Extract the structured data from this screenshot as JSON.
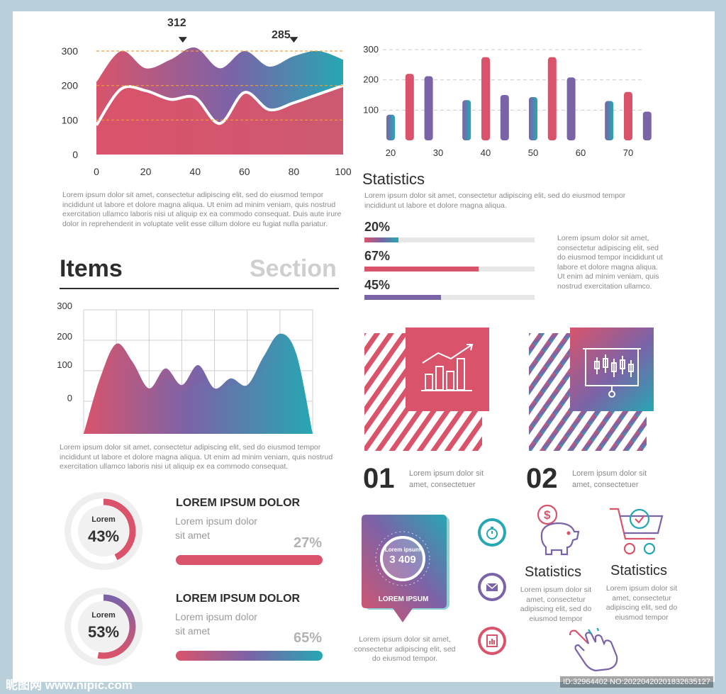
{
  "colors": {
    "red": "#d9546b",
    "purple": "#7b63a8",
    "teal": "#26a7b3",
    "grey": "#e7e7e7"
  },
  "chart_data": [
    {
      "type": "area",
      "x": [
        0,
        10,
        20,
        30,
        40,
        50,
        60,
        70,
        80,
        90,
        100
      ],
      "series": [
        {
          "values": [
            210,
            300,
            250,
            275,
            310,
            250,
            300,
            255,
            285,
            300,
            275
          ]
        },
        {
          "values": [
            85,
            190,
            185,
            160,
            165,
            90,
            180,
            130,
            150,
            175,
            200
          ]
        }
      ],
      "xticks": [
        "0",
        "20",
        "40",
        "60",
        "80",
        "100"
      ],
      "yticks": [
        "0",
        "100",
        "200",
        "300"
      ],
      "ylim": [
        0,
        320
      ],
      "annotations": [
        {
          "x": 35,
          "label": "312"
        },
        {
          "x": 80,
          "label": "285"
        }
      ]
    },
    {
      "type": "bar",
      "x": [
        20,
        24,
        28,
        36,
        40,
        44,
        50,
        54,
        58,
        66,
        70,
        74
      ],
      "values": [
        85,
        220,
        212,
        133,
        275,
        150,
        143,
        275,
        208,
        130,
        160,
        95
      ],
      "xticks": [
        "20",
        "30",
        "40",
        "50",
        "60",
        "70"
      ],
      "yticks": [
        "100",
        "200",
        "300"
      ],
      "ylim": [
        0,
        320
      ]
    },
    {
      "type": "area",
      "x": [
        0,
        1,
        2,
        3,
        4,
        5,
        6,
        7,
        8,
        9,
        10,
        11,
        12,
        13,
        14
      ],
      "series": [
        {
          "values": [
            -40,
            60,
            175,
            110,
            30,
            90,
            40,
            100,
            30,
            60,
            40,
            130,
            210,
            140,
            -40
          ]
        },
        {
          "values": [
            -40,
            40,
            120,
            60,
            10,
            60,
            20,
            50,
            20,
            40,
            30,
            80,
            120,
            80,
            -40
          ]
        }
      ],
      "yticks": [
        "0",
        "100",
        "200",
        "300"
      ],
      "ylim": [
        -40,
        300
      ]
    }
  ],
  "chart1": {
    "ann1": "312",
    "ann2": "285"
  },
  "para1": "Lorem ipsum dolor sit amet, consectetur adipiscing elit, sed do eiusmod tempor incididunt ut labore et dolore magna aliqua. Ut enim ad minim veniam, quis nostrud exercitation ullamco laboris nisi ut aliquip ex ea commodo consequat. Duis aute irure dolor in reprehenderit in voluptate velit esse cillum dolore eu fugiat nulla pariatur.",
  "items": "Items",
  "section": "Section",
  "para2": "Lorem ipsum dolor sit amet, consectetur adipiscing elit, sed do eiusmod tempor incididunt ut labore et dolore magna aliqua. Ut enim ad minim veniam, quis nostrud exercitation ullamco laboris nisi ut aliquip ex ea commodo consequat.",
  "statistics": {
    "title": "Statistics",
    "para": "Lorem ipsum dolor sit amet, consectetur adipiscing elit, sed do eiusmod tempor incididunt ut labore et dolore magna aliqua.",
    "bars": [
      {
        "label": "20%",
        "value": 0.2
      },
      {
        "label": "67%",
        "value": 0.67
      },
      {
        "label": "45%",
        "value": 0.45
      }
    ],
    "side": "Lorem ipsum dolor sit amet, consectetur adipiscing elit, sed do eiusmod tempor incididunt ut labore et dolore magna aliqua. Ut enim ad minim veniam, quis nostrud exercitation ullamco."
  },
  "tiles": [
    {
      "num": "01",
      "text": "Lorem ipsum dolor sit amet, consectetuer",
      "icon": "growth-chart-icon"
    },
    {
      "num": "02",
      "text": "Lorem ipsum dolor sit amet, consectetuer",
      "icon": "presentation-board-icon"
    }
  ],
  "rings": [
    {
      "label": "Lorem",
      "value": "43%",
      "pct": 0.43
    },
    {
      "label": "Lorem",
      "value": "53%",
      "pct": 0.53
    }
  ],
  "progress": [
    {
      "title": "LOREM IPSUM DOLOR",
      "sub1": "Lorem ipsum dolor",
      "sub2": "sit amet",
      "pct": "27%"
    },
    {
      "title": "LOREM IPSUM DOLOR",
      "sub1": "Lorem ipsum dolor",
      "sub2": "sit amet",
      "pct": "65%"
    }
  ],
  "badge": {
    "inner": "Lorem ipsum",
    "value": "3 409",
    "caption": "LOREM IPSUM",
    "text": "Lorem ipsum dolor sit amet, consectetur adipiscing elit, sed do eiusmod tempor."
  },
  "icons": [
    "stopwatch-icon",
    "mail-icon",
    "report-icon"
  ],
  "stat_cards": [
    {
      "title": "Statistics",
      "text": "Lorem ipsum dolor sit amet, consectetur adipiscing elit, sed do eiusmod tempor",
      "icon": "piggy-bank-icon"
    },
    {
      "title": "Statistics",
      "text": "Lorem ipsum dolor sit amet, consectetur adipiscing elit, sed do eiusmod tempor",
      "icon": "shopping-cart-icon"
    }
  ],
  "pointer_icon": "hand-pointer-icon",
  "watermark_left": "昵图网 www.nipic.com",
  "watermark_right": "ID:32964402 NO:20220420201832635127"
}
